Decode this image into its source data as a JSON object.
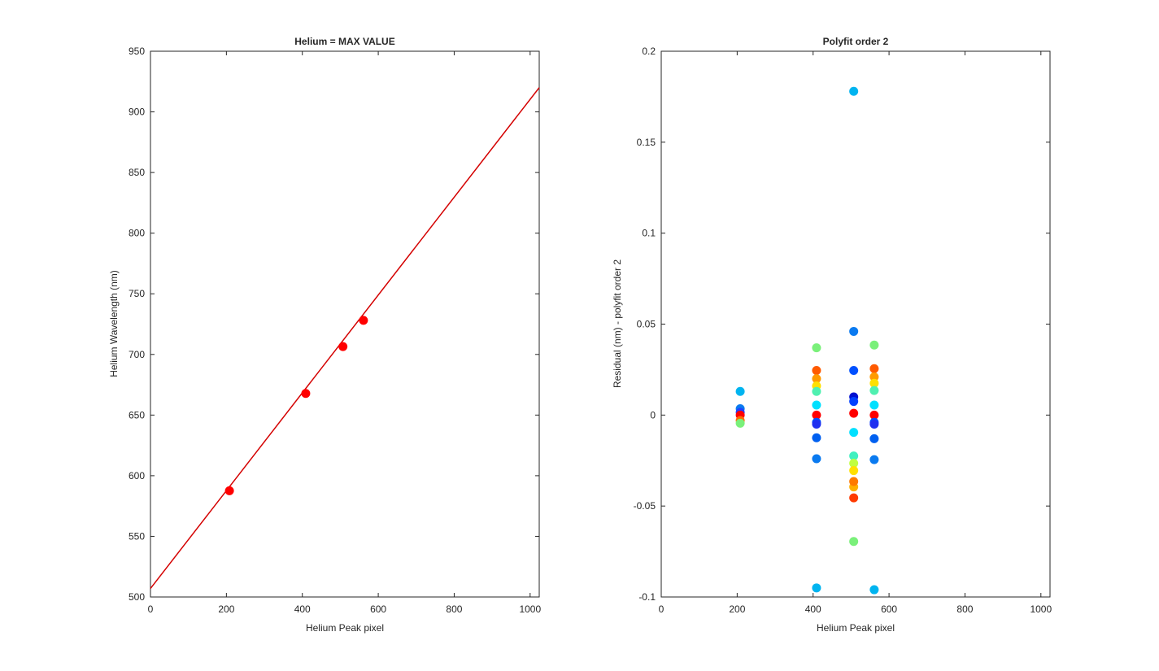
{
  "chart_data": [
    {
      "type": "scatter",
      "title": "Helium = MAX VALUE",
      "xlabel": "Helium Peak pixel",
      "ylabel": "Helium Wavelength (nm)",
      "xlim": [
        0,
        1024
      ],
      "ylim": [
        500,
        950
      ],
      "xticks": [
        "0",
        "200",
        "400",
        "600",
        "800",
        "1000"
      ],
      "yticks": [
        "500",
        "550",
        "600",
        "650",
        "700",
        "750",
        "800",
        "850",
        "900",
        "950"
      ],
      "grid": false,
      "colors": {
        "series": "#ff0000",
        "fit_line": "#d40000"
      },
      "fit_line": {
        "x": [
          0,
          1024
        ],
        "y": [
          507,
          920
        ]
      },
      "series": [
        {
          "x": [
            208,
            409,
            507,
            561
          ],
          "y": [
            587.6,
            667.8,
            706.5,
            728.1
          ]
        }
      ]
    },
    {
      "type": "scatter",
      "title": "Polyfit order 2",
      "xlabel": "Helium Peak pixel",
      "ylabel": "Residual (nm) - polyfit order 2",
      "xlim": [
        0,
        1024
      ],
      "ylim": [
        -0.1,
        0.2
      ],
      "xticks": [
        "0",
        "200",
        "400",
        "600",
        "800",
        "1000"
      ],
      "yticks": [
        "-0.1",
        "-0.05",
        "0",
        "0.05",
        "0.1",
        "0.15",
        "0.2"
      ],
      "grid": false,
      "points": [
        {
          "x": 208,
          "y": 0.013,
          "color": "#00b4f0"
        },
        {
          "x": 208,
          "y": 0.0035,
          "color": "#0a7af0"
        },
        {
          "x": 208,
          "y": 0.0015,
          "color": "#2040ff"
        },
        {
          "x": 208,
          "y": 0.0,
          "color": "#ff0000"
        },
        {
          "x": 208,
          "y": -0.003,
          "color": "#ff6a00"
        },
        {
          "x": 208,
          "y": -0.0045,
          "color": "#7af07a"
        },
        {
          "x": 409,
          "y": 0.037,
          "color": "#7af07a"
        },
        {
          "x": 409,
          "y": 0.0245,
          "color": "#ff5a00"
        },
        {
          "x": 409,
          "y": 0.02,
          "color": "#ff9a00"
        },
        {
          "x": 409,
          "y": 0.016,
          "color": "#ffe000"
        },
        {
          "x": 409,
          "y": 0.013,
          "color": "#50f0b0"
        },
        {
          "x": 409,
          "y": 0.0055,
          "color": "#00e0ff"
        },
        {
          "x": 409,
          "y": 0.0,
          "color": "#ff0000"
        },
        {
          "x": 409,
          "y": -0.004,
          "color": "#0050ff"
        },
        {
          "x": 409,
          "y": -0.005,
          "color": "#2030f0"
        },
        {
          "x": 409,
          "y": -0.0125,
          "color": "#0060f0"
        },
        {
          "x": 409,
          "y": -0.024,
          "color": "#0a7af0"
        },
        {
          "x": 409,
          "y": -0.095,
          "color": "#00b4f0"
        },
        {
          "x": 507,
          "y": 0.178,
          "color": "#00b4f0"
        },
        {
          "x": 507,
          "y": 0.046,
          "color": "#0a7af0"
        },
        {
          "x": 507,
          "y": 0.0245,
          "color": "#0050ff"
        },
        {
          "x": 507,
          "y": 0.01,
          "color": "#0010d0"
        },
        {
          "x": 507,
          "y": 0.0075,
          "color": "#0040ff"
        },
        {
          "x": 507,
          "y": 0.001,
          "color": "#ff0000"
        },
        {
          "x": 507,
          "y": -0.0095,
          "color": "#00e0ff"
        },
        {
          "x": 507,
          "y": -0.0225,
          "color": "#40f0c0"
        },
        {
          "x": 507,
          "y": -0.0265,
          "color": "#c0ff40"
        },
        {
          "x": 507,
          "y": -0.0305,
          "color": "#ffe000"
        },
        {
          "x": 507,
          "y": -0.0395,
          "color": "#ffb000"
        },
        {
          "x": 507,
          "y": -0.0365,
          "color": "#ff7a00"
        },
        {
          "x": 507,
          "y": -0.0455,
          "color": "#ff3a00"
        },
        {
          "x": 507,
          "y": -0.0695,
          "color": "#7af07a"
        },
        {
          "x": 561,
          "y": 0.0385,
          "color": "#7af07a"
        },
        {
          "x": 561,
          "y": 0.0255,
          "color": "#ff5a00"
        },
        {
          "x": 561,
          "y": 0.021,
          "color": "#ff9a00"
        },
        {
          "x": 561,
          "y": 0.0175,
          "color": "#ffe000"
        },
        {
          "x": 561,
          "y": 0.0135,
          "color": "#50f0b0"
        },
        {
          "x": 561,
          "y": 0.0055,
          "color": "#00e0ff"
        },
        {
          "x": 561,
          "y": 0.0,
          "color": "#ff0000"
        },
        {
          "x": 561,
          "y": -0.004,
          "color": "#0050ff"
        },
        {
          "x": 561,
          "y": -0.005,
          "color": "#2030f0"
        },
        {
          "x": 561,
          "y": -0.013,
          "color": "#0060f0"
        },
        {
          "x": 561,
          "y": -0.0245,
          "color": "#0a7af0"
        },
        {
          "x": 561,
          "y": -0.096,
          "color": "#00b4f0"
        }
      ]
    }
  ]
}
